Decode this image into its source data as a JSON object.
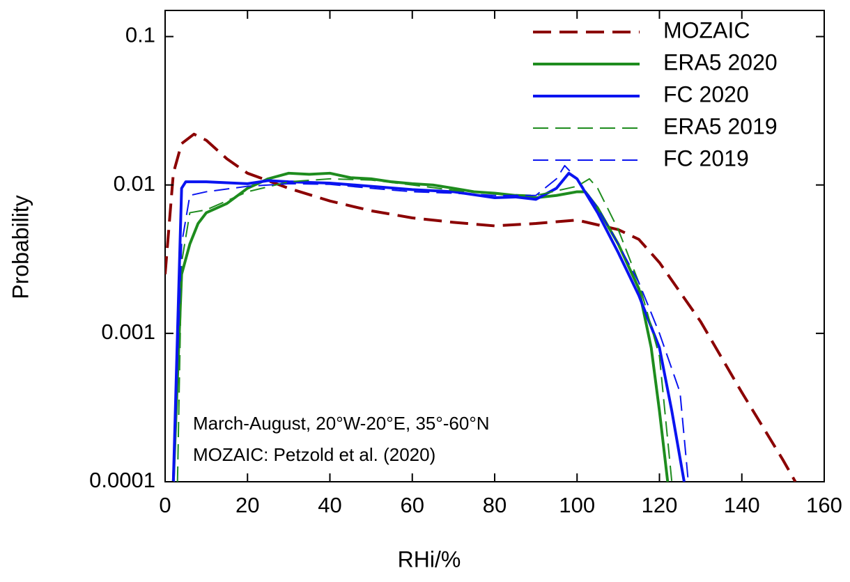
{
  "chart_data": {
    "type": "line",
    "x_label": "RHi/%",
    "y_label": "Probability",
    "annotations": [
      "March-August, 20°W-20°E, 35°-60°N",
      "MOZAIC: Petzold et al. (2020)"
    ],
    "xlim": [
      0,
      160
    ],
    "xticks": [
      0,
      20,
      40,
      60,
      80,
      100,
      120,
      140,
      160
    ],
    "ylim": [
      0.0001,
      0.15
    ],
    "yticks": [
      0.0001,
      0.001,
      0.01,
      0.1
    ],
    "y_scale": "log",
    "grid": false,
    "legend": "upper right",
    "series": [
      {
        "name": "MOZAIC",
        "color": "#8b0000",
        "style": "dashed",
        "weight": "thick",
        "x": [
          0,
          2,
          4,
          7,
          10,
          15,
          20,
          30,
          40,
          50,
          60,
          70,
          80,
          90,
          100,
          110,
          115,
          120,
          130,
          140,
          150,
          153
        ],
        "values": [
          0.0025,
          0.012,
          0.019,
          0.022,
          0.02,
          0.015,
          0.012,
          0.0095,
          0.0078,
          0.0067,
          0.006,
          0.0056,
          0.0053,
          0.0055,
          0.0058,
          0.005,
          0.0043,
          0.003,
          0.0012,
          0.0004,
          0.00014,
          0.0001
        ]
      },
      {
        "name": "ERA5 2020",
        "color": "#1e8c1e",
        "style": "solid",
        "weight": "thick",
        "x": [
          2,
          3,
          4,
          6,
          8,
          10,
          15,
          20,
          25,
          30,
          35,
          40,
          45,
          50,
          55,
          60,
          65,
          70,
          75,
          80,
          85,
          90,
          95,
          100,
          102,
          105,
          110,
          115,
          118,
          120,
          122
        ],
        "values": [
          0.0001,
          0.0005,
          0.0025,
          0.004,
          0.0055,
          0.0065,
          0.0075,
          0.0095,
          0.011,
          0.012,
          0.0118,
          0.012,
          0.0112,
          0.011,
          0.0105,
          0.0102,
          0.01,
          0.0095,
          0.009,
          0.0088,
          0.0085,
          0.0082,
          0.0085,
          0.009,
          0.009,
          0.007,
          0.004,
          0.002,
          0.0008,
          0.0003,
          0.0001
        ]
      },
      {
        "name": "FC 2020",
        "color": "#0a14f0",
        "style": "solid",
        "weight": "thick",
        "x": [
          2,
          3,
          4,
          5,
          10,
          20,
          25,
          30,
          40,
          50,
          60,
          70,
          80,
          85,
          90,
          95,
          98,
          100,
          105,
          110,
          115,
          120,
          123,
          126
        ],
        "values": [
          0.0001,
          0.001,
          0.0095,
          0.0105,
          0.0105,
          0.0102,
          0.0107,
          0.0105,
          0.0103,
          0.0098,
          0.0093,
          0.009,
          0.0082,
          0.0083,
          0.008,
          0.0095,
          0.012,
          0.011,
          0.0065,
          0.0035,
          0.0018,
          0.0008,
          0.0003,
          0.0001
        ]
      },
      {
        "name": "ERA5 2019",
        "color": "#1e8c1e",
        "style": "dashed",
        "weight": "thin",
        "x": [
          3,
          4,
          6,
          10,
          20,
          30,
          40,
          50,
          60,
          70,
          80,
          90,
          100,
          103,
          105,
          110,
          115,
          120,
          123
        ],
        "values": [
          0.0001,
          0.003,
          0.0065,
          0.0068,
          0.009,
          0.0105,
          0.011,
          0.0108,
          0.01,
          0.0092,
          0.0087,
          0.0085,
          0.0098,
          0.011,
          0.0095,
          0.005,
          0.0022,
          0.0007,
          0.0001
        ]
      },
      {
        "name": "FC 2019",
        "color": "#0a14f0",
        "style": "dashed",
        "weight": "thin",
        "x": [
          2,
          4,
          6,
          10,
          20,
          30,
          40,
          50,
          60,
          70,
          80,
          90,
          95,
          97,
          100,
          105,
          110,
          115,
          120,
          125,
          127
        ],
        "values": [
          0.0001,
          0.004,
          0.0085,
          0.009,
          0.0098,
          0.0102,
          0.0101,
          0.0095,
          0.009,
          0.0088,
          0.0085,
          0.0085,
          0.011,
          0.0135,
          0.011,
          0.007,
          0.004,
          0.0022,
          0.001,
          0.0004,
          0.0001
        ]
      }
    ]
  }
}
